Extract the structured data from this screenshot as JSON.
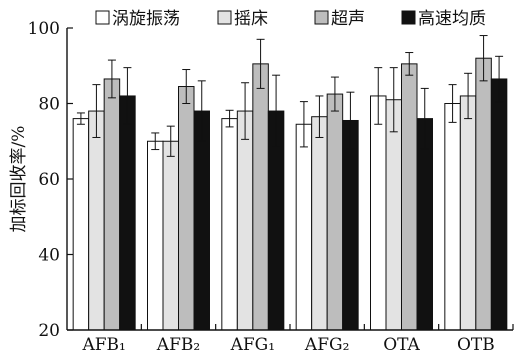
{
  "chart_data": {
    "type": "bar",
    "title": "",
    "xlabel": "",
    "ylabel": "加标回收率/%",
    "ylim": [
      20,
      100
    ],
    "yticks": [
      20,
      40,
      60,
      80,
      100
    ],
    "grid": false,
    "legend_position": "top",
    "categories": [
      "AFB₁",
      "AFB₂",
      "AFG₁",
      "AFG₂",
      "OTA",
      "OTB"
    ],
    "series": [
      {
        "name": "涡旋振荡",
        "color": "#ffffff",
        "values": [
          76,
          70,
          76,
          74.5,
          82,
          80
        ],
        "errors": [
          1.5,
          2.2,
          2.2,
          6,
          7.5,
          5
        ]
      },
      {
        "name": "摇床",
        "color": "#e3e3e3",
        "values": [
          78,
          70,
          78,
          76.5,
          81,
          82
        ],
        "errors": [
          7,
          4,
          7.5,
          5.5,
          8.5,
          6
        ]
      },
      {
        "name": "超声",
        "color": "#bdbdbd",
        "values": [
          86.5,
          84.5,
          90.5,
          82.5,
          90.5,
          92
        ],
        "errors": [
          5,
          4.5,
          6.5,
          4.5,
          3,
          6
        ]
      },
      {
        "name": "高速均质",
        "color": "#111111",
        "values": [
          82,
          78,
          78,
          75.5,
          76,
          86.5
        ],
        "errors": [
          7.5,
          8,
          9.5,
          7.5,
          8,
          6
        ]
      }
    ]
  }
}
